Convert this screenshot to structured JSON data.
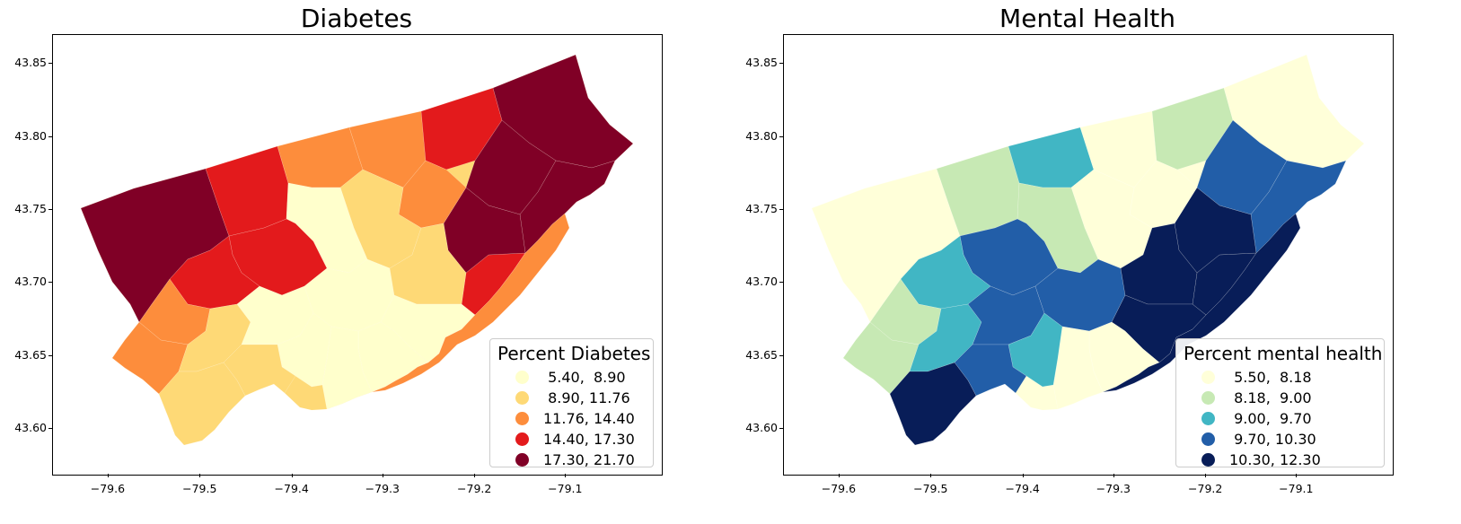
{
  "maps": [
    {
      "title": "Diabetes",
      "legend_title": "Percent Diabetes",
      "classes": [
        {
          "label": " 5.40,  8.90",
          "color": "#ffffcc"
        },
        {
          "label": " 8.90, 11.76",
          "color": "#fed976"
        },
        {
          "label": "11.76, 14.40",
          "color": "#fd8d3c"
        },
        {
          "label": "14.40, 17.30",
          "color": "#e31a1c"
        },
        {
          "label": "17.30, 21.70",
          "color": "#800026"
        }
      ]
    },
    {
      "title": "Mental Health",
      "legend_title": "Percent mental health",
      "classes": [
        {
          "label": " 5.50,  8.18",
          "color": "#ffffd9"
        },
        {
          "label": " 8.18,  9.00",
          "color": "#c7e9b4"
        },
        {
          "label": " 9.00,  9.70",
          "color": "#41b6c4"
        },
        {
          "label": " 9.70, 10.30",
          "color": "#225ea8"
        },
        {
          "label": "10.30, 12.30",
          "color": "#081d58"
        }
      ]
    }
  ],
  "x_ticks": [
    "−79.6",
    "−79.5",
    "−79.4",
    "−79.3",
    "−79.2",
    "−79.1"
  ],
  "y_ticks": [
    "43.85",
    "43.80",
    "43.75",
    "43.70",
    "43.65",
    "43.60"
  ]
}
